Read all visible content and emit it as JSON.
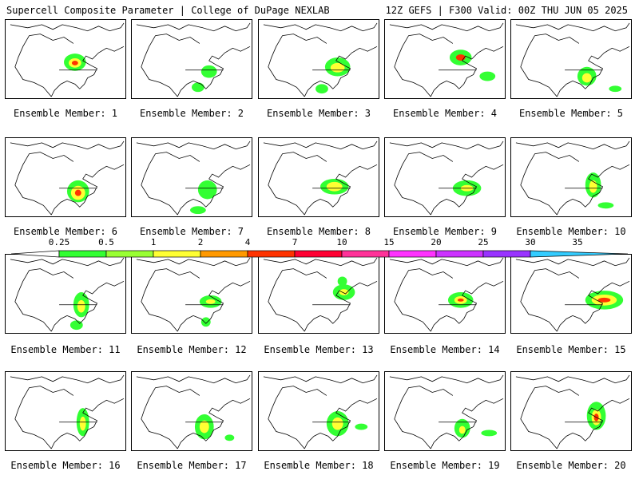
{
  "header": {
    "left": "Supercell Composite Parameter | College of DuPage NEXLAB",
    "right": "12Z GEFS | F300 Valid: 00Z THU JUN 05 2025"
  },
  "legend": {
    "ticks": [
      "0.25",
      "0.5",
      "1",
      "2",
      "4",
      "7",
      "10",
      "15",
      "20",
      "25",
      "30",
      "35"
    ],
    "colors": [
      "#ffffff",
      "#33ff33",
      "#99ff33",
      "#ffff33",
      "#ff9900",
      "#ff3300",
      "#ff0033",
      "#ff3399",
      "#ff33ff",
      "#cc33ff",
      "#9933ff",
      "#33ccff"
    ]
  },
  "members": [
    {
      "label": "Ensemble Member: 1"
    },
    {
      "label": "Ensemble Member: 2"
    },
    {
      "label": "Ensemble Member: 3"
    },
    {
      "label": "Ensemble Member: 4"
    },
    {
      "label": "Ensemble Member: 5"
    },
    {
      "label": "Ensemble Member: 6"
    },
    {
      "label": "Ensemble Member: 7"
    },
    {
      "label": "Ensemble Member: 8"
    },
    {
      "label": "Ensemble Member: 9"
    },
    {
      "label": "Ensemble Member: 10"
    },
    {
      "label": "Ensemble Member: 11"
    },
    {
      "label": "Ensemble Member: 12"
    },
    {
      "label": "Ensemble Member: 13"
    },
    {
      "label": "Ensemble Member: 14"
    },
    {
      "label": "Ensemble Member: 15"
    },
    {
      "label": "Ensemble Member: 16"
    },
    {
      "label": "Ensemble Member: 17"
    },
    {
      "label": "Ensemble Member: 18"
    },
    {
      "label": "Ensemble Member: 19"
    },
    {
      "label": "Ensemble Member: 20"
    }
  ]
}
